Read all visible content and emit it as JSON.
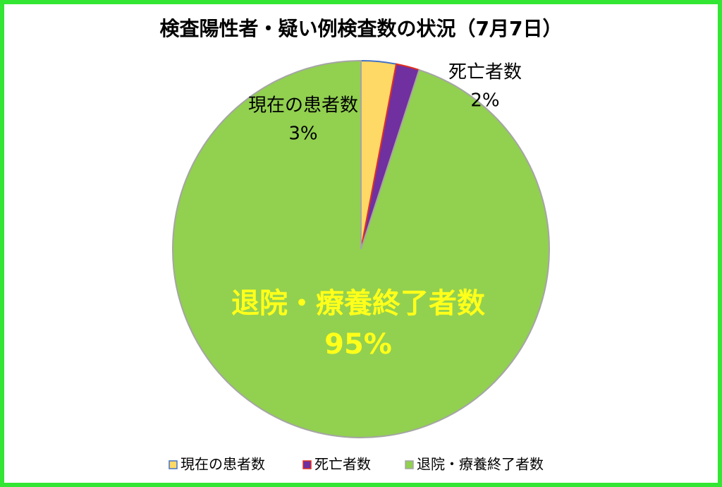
{
  "chart_data": {
    "type": "pie",
    "title": "検査陽性者・疑い例検査数の状況（7月7日）",
    "categories": [
      "現在の患者数",
      "死亡者数",
      "退院・療養終了者数"
    ],
    "values": [
      3,
      2,
      95
    ],
    "value_labels": [
      "3%",
      "2%",
      "95%"
    ],
    "colors": [
      "#ffd966",
      "#7030a0",
      "#92d050"
    ],
    "edgecolors": [
      "#4472c4",
      "#e0301e",
      "#a5a5a5"
    ],
    "legend": "bottom"
  }
}
